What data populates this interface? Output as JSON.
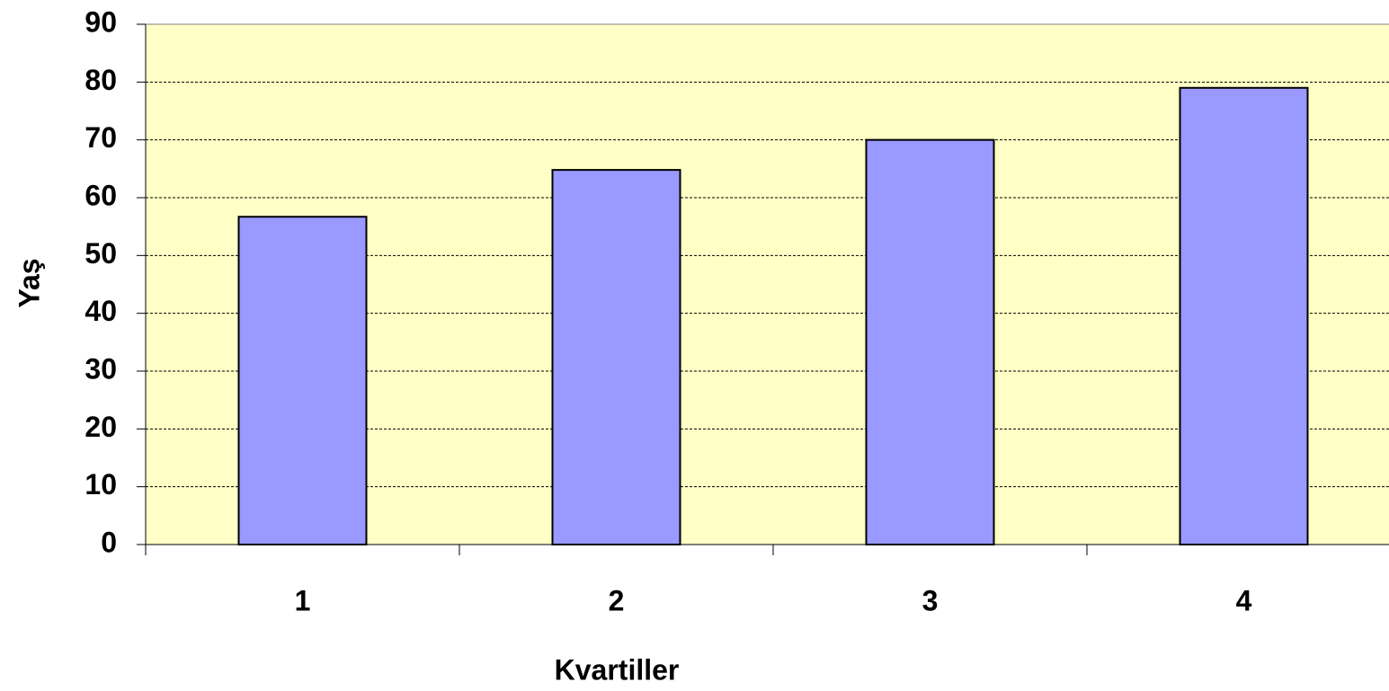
{
  "chart_data": {
    "type": "bar",
    "x_label": "Kvartiller",
    "y_label": "Yaş",
    "categories": [
      "1",
      "2",
      "3",
      "4"
    ],
    "values": [
      56.7,
      64.8,
      70,
      79
    ],
    "color": "#9999ff",
    "ylim": [
      0,
      90
    ],
    "yticks": [
      0,
      10,
      20,
      30,
      40,
      50,
      60,
      70,
      80,
      90
    ],
    "grid": true
  }
}
